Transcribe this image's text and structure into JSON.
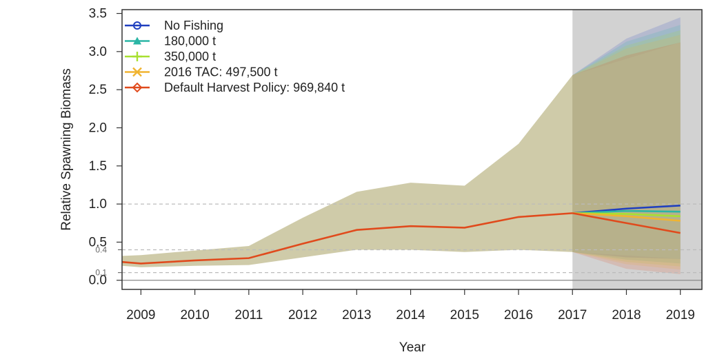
{
  "chart_data": {
    "type": "line",
    "title": "",
    "xlabel": "Year",
    "ylabel": "Relative Spawning Biomass",
    "xlim": [
      2008.65,
      2019.4
    ],
    "ylim": [
      -0.12,
      3.55
    ],
    "x_ticks": [
      2009,
      2010,
      2011,
      2012,
      2013,
      2014,
      2015,
      2016,
      2017,
      2018,
      2019
    ],
    "y_ticks": [
      0.0,
      0.5,
      1.0,
      1.5,
      2.0,
      2.5,
      3.0,
      3.5
    ],
    "y_tick_labels": [
      "0.0",
      "0.5",
      "1.0",
      "1.5",
      "2.0",
      "2.5",
      "3.0",
      "3.5"
    ],
    "y_minor_labels": [
      {
        "value": 0.1,
        "label": "0.1"
      },
      {
        "value": 0.4,
        "label": "0.4"
      }
    ],
    "reference_lines": [
      0.1,
      0.4,
      1.0
    ],
    "grid": false,
    "legend_position": "top-left",
    "forecast_start": 2017,
    "historical": {
      "x": [
        2008.65,
        2009,
        2010,
        2011,
        2012,
        2013,
        2014,
        2015,
        2016,
        2017
      ],
      "median": [
        0.24,
        0.22,
        0.26,
        0.29,
        0.48,
        0.66,
        0.71,
        0.69,
        0.83,
        0.88
      ],
      "lower": [
        0.19,
        0.17,
        0.19,
        0.2,
        0.3,
        0.4,
        0.4,
        0.37,
        0.4,
        0.37
      ],
      "upper": [
        0.32,
        0.33,
        0.39,
        0.45,
        0.82,
        1.16,
        1.28,
        1.24,
        1.79,
        2.69
      ]
    },
    "series": [
      {
        "name": "No Fishing",
        "color": "#1f3fbf",
        "marker": "circle",
        "x": [
          2017,
          2018,
          2019
        ],
        "values": [
          0.88,
          0.94,
          0.98
        ],
        "lower": [
          0.37,
          0.3,
          0.28
        ],
        "upper": [
          2.69,
          3.17,
          3.45
        ]
      },
      {
        "name": "180,000 t",
        "color": "#2ab5a5",
        "marker": "triangle",
        "x": [
          2017,
          2018,
          2019
        ],
        "values": [
          0.88,
          0.91,
          0.9
        ],
        "lower": [
          0.37,
          0.27,
          0.22
        ],
        "upper": [
          2.69,
          3.13,
          3.35
        ]
      },
      {
        "name": "350,000 t",
        "color": "#a8e030",
        "marker": "plus",
        "x": [
          2017,
          2018,
          2019
        ],
        "values": [
          0.88,
          0.87,
          0.84
        ],
        "lower": [
          0.37,
          0.24,
          0.18
        ],
        "upper": [
          2.69,
          3.08,
          3.28
        ]
      },
      {
        "name": "2016 TAC: 497,500 t",
        "color": "#f0b431",
        "marker": "cross",
        "x": [
          2017,
          2018,
          2019
        ],
        "values": [
          0.88,
          0.84,
          0.78
        ],
        "lower": [
          0.37,
          0.21,
          0.14
        ],
        "upper": [
          2.69,
          3.04,
          3.22
        ]
      },
      {
        "name": "Default Harvest Policy: 969,840 t",
        "color": "#e04a1c",
        "marker": "diamond",
        "x": [
          2017,
          2018,
          2019
        ],
        "values": [
          0.88,
          0.75,
          0.62
        ],
        "lower": [
          0.37,
          0.15,
          0.08
        ],
        "upper": [
          2.69,
          2.95,
          3.12
        ]
      }
    ],
    "colors": {
      "historical_band": "#ccc8a4",
      "forecast_shade": "#d2d2d2",
      "median_line": "#e04a1c",
      "reference_line": "#bbbbbb"
    }
  }
}
